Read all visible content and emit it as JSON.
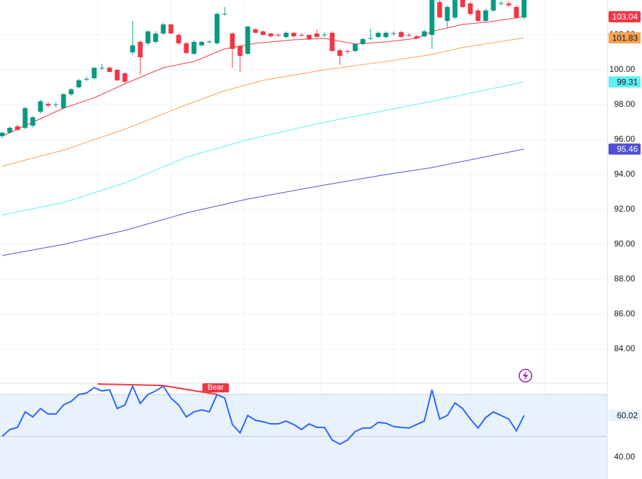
{
  "chart_data": [
    {
      "type": "candlestick",
      "up_color": "#089981",
      "down_color": "#f23645",
      "ylim": [
        82.08,
        104
      ],
      "yticks": [
        {
          "value": 84,
          "label": "84.00"
        },
        {
          "value": 86,
          "label": "86.00"
        },
        {
          "value": 88,
          "label": "88.00"
        },
        {
          "value": 90,
          "label": "90.00"
        },
        {
          "value": 92,
          "label": "92.00"
        },
        {
          "value": 94,
          "label": "94.00"
        },
        {
          "value": 96,
          "label": "96.00"
        },
        {
          "value": 98,
          "label": "98.00"
        },
        {
          "value": 100,
          "label": "100.00"
        },
        {
          "value": 102,
          "label": "102.00"
        }
      ],
      "grid": true,
      "open": [
        96.2,
        96.4,
        96.76,
        96.68,
        96.8,
        97.6,
        98.05,
        98,
        97.8,
        98.6,
        99,
        99.45,
        99.52,
        100.1,
        100.12,
        100,
        99.8,
        101,
        101.6,
        101.52,
        101.6,
        102.08,
        102.6,
        102,
        101.52,
        100.92,
        101.4,
        101.6,
        101.52,
        103.2,
        102.08,
        101.36,
        100.92,
        102.32,
        102.2,
        102.08,
        102,
        101.88,
        102.12,
        102,
        102,
        102.08,
        102,
        102.12,
        101.12,
        101.08,
        101.08,
        101.48,
        101.8,
        101.88,
        101.88,
        102.08,
        102.16,
        102,
        101.92,
        101.92,
        102,
        103.88,
        102.8,
        103,
        104,
        103.8,
        103.4,
        102.8,
        103.4,
        103.8,
        103.8,
        103.6,
        103
      ],
      "high": [
        96.45,
        96.75,
        96.85,
        97.9,
        97.35,
        98.3,
        98.15,
        98.15,
        98.65,
        98.95,
        99.5,
        99.6,
        100.15,
        100.35,
        100.2,
        100.05,
        99.85,
        102.8,
        101.7,
        102.25,
        102.2,
        102.7,
        102.65,
        102.1,
        101.6,
        101.7,
        101.65,
        101.7,
        103.3,
        103.6,
        102.15,
        101.4,
        102.5,
        102.4,
        102.25,
        102.12,
        102.1,
        102.2,
        102.15,
        102.1,
        102.05,
        102.3,
        102.15,
        102.2,
        101.2,
        101.15,
        101.5,
        101.85,
        102.35,
        102.2,
        102.2,
        102.2,
        102.25,
        102.1,
        102,
        102.3,
        104.2,
        104.1,
        103.7,
        104.2,
        104.2,
        103.9,
        103.5,
        103.5,
        104.2,
        103.95,
        103.95,
        103.7,
        104.2
      ],
      "low": [
        96.1,
        96.35,
        96.5,
        96.6,
        96.7,
        97.5,
        97.85,
        97.85,
        97.75,
        98.5,
        98.95,
        99.35,
        99.45,
        100,
        99.85,
        99.35,
        99.25,
        100.85,
        99.72,
        101.4,
        101.5,
        102,
        102.05,
        101.45,
        100.9,
        100.85,
        101.35,
        101.5,
        101.45,
        103.1,
        100.12,
        99.88,
        100.85,
        102.1,
        101.95,
        101.85,
        101.9,
        101.8,
        101.85,
        101.9,
        101.7,
        101.85,
        101.9,
        101.05,
        100.28,
        100.9,
        101,
        101.4,
        101.7,
        101.85,
        101.8,
        101.95,
        101.85,
        101.9,
        101.75,
        101.85,
        101.2,
        103,
        102.4,
        102.9,
        103.55,
        103.1,
        102.75,
        102.7,
        103.3,
        103.7,
        103.6,
        102.95,
        102.9
      ],
      "close": [
        96.4,
        96.68,
        96.56,
        97.8,
        97.28,
        98.2,
        97.95,
        98.02,
        98.6,
        98.88,
        99.4,
        99.48,
        100.12,
        100.12,
        99.88,
        99.4,
        99.32,
        101.4,
        100.72,
        102.2,
        102.08,
        102.6,
        102.08,
        101.52,
        100.96,
        101.6,
        101.6,
        101.62,
        103.2,
        103.22,
        101.2,
        100.8,
        102.48,
        102.12,
        102,
        101.92,
        101.98,
        102.12,
        101.92,
        101.98,
        101.76,
        101.88,
        102.02,
        101.08,
        100.8,
        101.05,
        101.48,
        101.76,
        101.82,
        102.12,
        102.12,
        102.1,
        101.88,
        101.98,
        101.8,
        102.2,
        104,
        103,
        103.6,
        104,
        103.6,
        103.2,
        102.8,
        103.4,
        104,
        103.82,
        103.7,
        103,
        104.1
      ],
      "lines": [
        {
          "color": "#f23645",
          "x": [
            0,
            3,
            8,
            12,
            16,
            21,
            25,
            29,
            33,
            38,
            42,
            46,
            50,
            54,
            56,
            60,
            63,
            68
          ],
          "values": [
            96.2,
            96.8,
            97.8,
            98.4,
            99.2,
            100.12,
            100.48,
            101.2,
            101.52,
            101.72,
            101.8,
            101.48,
            101.6,
            101.8,
            102.2,
            102.6,
            102.72,
            103.04
          ]
        },
        {
          "color": "#f7a350",
          "x": [
            0,
            8,
            16,
            24,
            29,
            34,
            42,
            50,
            56,
            60,
            68
          ],
          "values": [
            94.48,
            95.4,
            96.6,
            98,
            98.8,
            99.4,
            100,
            100.48,
            100.88,
            101.28,
            101.83
          ]
        },
        {
          "color": "#5ff0f5",
          "x": [
            0,
            8,
            16,
            24,
            32,
            42,
            50,
            56,
            68
          ],
          "values": [
            91.68,
            92.4,
            93.52,
            95,
            96,
            97,
            97.68,
            98.2,
            99.31
          ]
        },
        {
          "color": "#5050d8",
          "x": [
            0,
            8,
            16,
            24,
            32,
            42,
            50,
            56,
            68
          ],
          "values": [
            89.36,
            90,
            90.8,
            91.8,
            92.6,
            93.4,
            94,
            94.4,
            95.46
          ]
        }
      ]
    },
    {
      "type": "line",
      "ylim": [
        29.67,
        75.67
      ],
      "yticks": [
        {
          "value": 40,
          "label": "40.00"
        },
        {
          "value": 60,
          "label": "60.00"
        }
      ],
      "bands": [
        70,
        50
      ],
      "band_color": "#e8f2fd",
      "annotation": "Bear",
      "series": [
        {
          "color": "#2962ff",
          "values": [
            50,
            53.3,
            54.3,
            61.7,
            59.3,
            63.3,
            60.7,
            60.7,
            65,
            66.7,
            70,
            70.7,
            73.3,
            71.7,
            72.3,
            63.3,
            65,
            74,
            65.7,
            70,
            71.7,
            74,
            68.3,
            65,
            59.3,
            61.7,
            62.7,
            61.7,
            70,
            68.3,
            55.7,
            51.7,
            60,
            57.7,
            57,
            56,
            56,
            57.3,
            55.7,
            53.3,
            56,
            54.3,
            54.3,
            48.3,
            46.3,
            48.3,
            52.3,
            54,
            54,
            56.7,
            56.3,
            54.7,
            54.3,
            54,
            55.7,
            57.3,
            72.3,
            58.3,
            60,
            66,
            63.3,
            58.3,
            54,
            59,
            61.7,
            60,
            58.3,
            52.7,
            60.02
          ]
        }
      ]
    }
  ]
}
